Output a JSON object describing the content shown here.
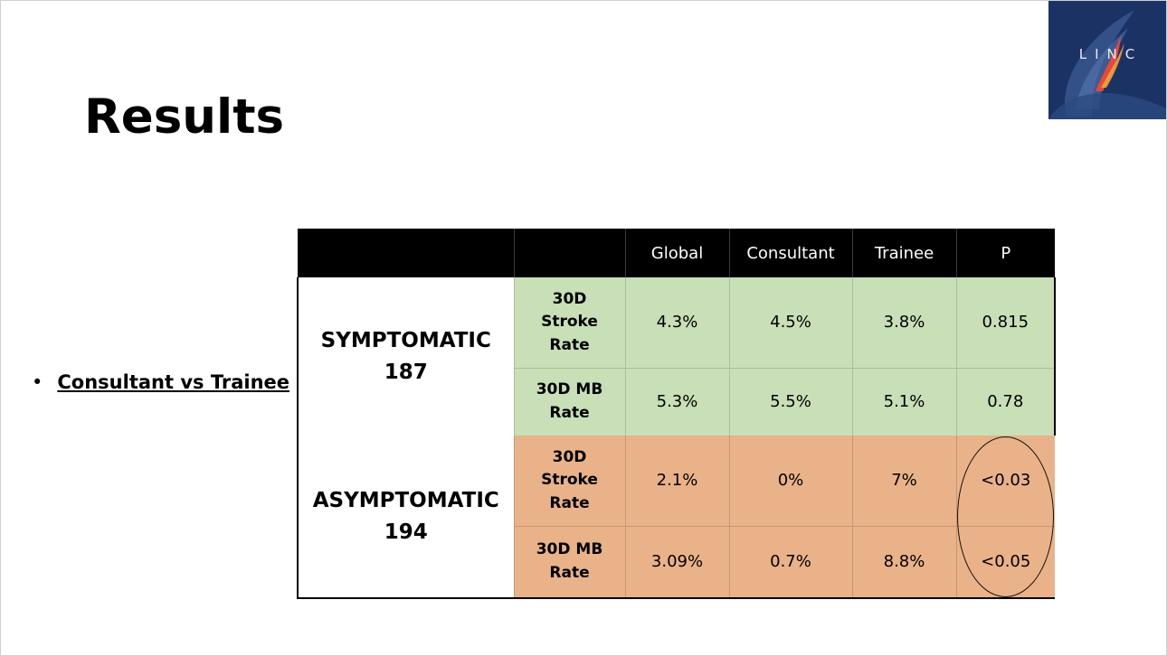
{
  "slide": {
    "title": "Results",
    "logo_text": "LINC",
    "bullet": "Consultant vs Trainee"
  },
  "table": {
    "headers": [
      "",
      "",
      "Global",
      "Consultant",
      "Trainee",
      "P"
    ],
    "groups": [
      {
        "label": "SYMPTOMATIC",
        "n": "187",
        "rows": [
          {
            "metric_lines": [
              "30D",
              "Stroke",
              "Rate"
            ],
            "global": "4.3%",
            "consultant": "4.5%",
            "trainee": "3.8%",
            "p": "0.815"
          },
          {
            "metric_lines": [
              "30D MB",
              "Rate"
            ],
            "global": "5.3%",
            "consultant": "5.5%",
            "trainee": "5.1%",
            "p": "0.78"
          }
        ]
      },
      {
        "label": "ASYMPTOMATIC",
        "n": "194",
        "rows": [
          {
            "metric_lines": [
              "30D",
              "Stroke",
              "Rate"
            ],
            "global": "2.1%",
            "consultant": "0%",
            "trainee": "7%",
            "p": "<0.03"
          },
          {
            "metric_lines": [
              "30D MB",
              "Rate"
            ],
            "global": "3.09%",
            "consultant": "0.7%",
            "trainee": "8.8%",
            "p": "<0.05"
          }
        ]
      }
    ]
  },
  "colors": {
    "symptomatic_fill": "#c8dfb7",
    "asymptomatic_fill": "#e9b289",
    "header_fill": "#000000",
    "logo_background": "#1b3264"
  }
}
